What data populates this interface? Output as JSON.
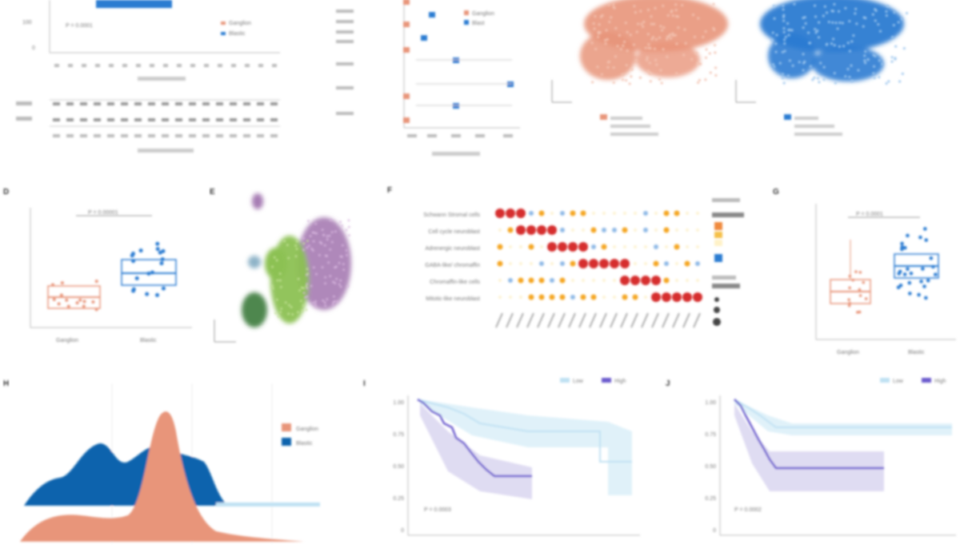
{
  "colors": {
    "salmon": "#e8957a",
    "blue": "#2b7bd1",
    "darkblue": "#0c63ad",
    "purple": "#6a5acd",
    "lightblue": "#bfe1f3",
    "green": "#8cc152",
    "darkgreen": "#3c7a3c",
    "violet": "#a67bb3",
    "red": "#d62f2f",
    "orange": "#f5a623"
  },
  "panel_labels": {
    "d": "D",
    "e": "E",
    "f": "F",
    "g": "G",
    "h": "H",
    "i": "I",
    "j": "J"
  },
  "panel_a": {
    "legend": [
      "Ganglion",
      "Blastic"
    ],
    "pvalue": "P = 0.0001"
  },
  "panel_b": {
    "legend": [
      "Ganglion",
      "Blast"
    ]
  },
  "panel_d": {
    "pvalue": "P = 0.00001",
    "x_labels": [
      "Ganglion",
      "Blastic"
    ]
  },
  "panel_f": {
    "rows": [
      "Schwann Stromal cells",
      "Cell cycle neuroblast",
      "Adrenergic neuroblast",
      "GABA-like/ chromaffin",
      "Chromaffin-like cells",
      "Mitotic-like neuroblast"
    ]
  },
  "panel_g": {
    "pvalue": "P = 0.0001",
    "x_labels": [
      "Ganglion",
      "Blastic"
    ]
  },
  "panel_h": {
    "legend": [
      "Ganglion",
      "Blastic"
    ]
  },
  "panel_i": {
    "legend": [
      "Low",
      "High"
    ],
    "pvalue": "P = 0.0003",
    "y_ticks": [
      "1.00",
      "0.75",
      "0.50",
      "0.25",
      "0"
    ]
  },
  "panel_j": {
    "legend": [
      "Low",
      "High"
    ],
    "pvalue": "P = 0.0002",
    "y_ticks": [
      "1.00",
      "0.75",
      "0.50",
      "0.25",
      "0"
    ]
  }
}
